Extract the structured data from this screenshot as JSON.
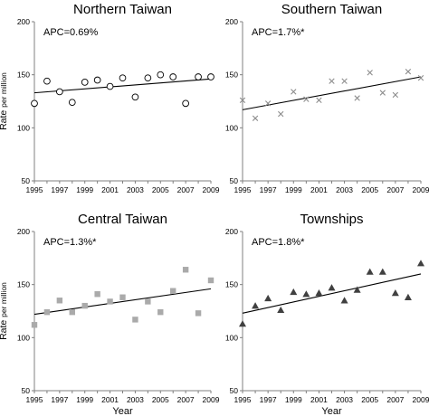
{
  "chart_data": [
    {
      "type": "scatter",
      "title": "Northern Taiwan",
      "annotation": "APC=0.69%",
      "marker": "circle",
      "ylabel_main": "Rate",
      "ylabel_sub": "per million",
      "xlabel": "",
      "xlim": [
        1995,
        2009
      ],
      "ylim": [
        50,
        200
      ],
      "xticks": [
        "1995",
        "1997",
        "1999",
        "2001",
        "2003",
        "2005",
        "2007",
        "2009"
      ],
      "yticks": [
        "50",
        "100",
        "150",
        "200"
      ],
      "x": [
        1995,
        1996,
        1997,
        1998,
        1999,
        2000,
        2001,
        2002,
        2003,
        2004,
        2005,
        2006,
        2007,
        2008,
        2009
      ],
      "y": [
        123,
        144,
        134,
        124,
        143,
        145,
        139,
        147,
        129,
        147,
        150,
        148,
        123,
        148,
        148
      ],
      "trend": [
        [
          1995,
          133
        ],
        [
          2009,
          146
        ]
      ]
    },
    {
      "type": "scatter",
      "title": "Southern Taiwan",
      "annotation": "APC=1.7%*",
      "marker": "x",
      "ylabel_main": "",
      "ylabel_sub": "",
      "xlabel": "",
      "xlim": [
        1995,
        2009
      ],
      "ylim": [
        50,
        200
      ],
      "xticks": [
        "1995",
        "1997",
        "1999",
        "2001",
        "2003",
        "2005",
        "2007",
        "2009"
      ],
      "yticks": [
        "50",
        "100",
        "150",
        "200"
      ],
      "x": [
        1995,
        1996,
        1997,
        1998,
        1999,
        2000,
        2001,
        2002,
        2003,
        2004,
        2005,
        2006,
        2007,
        2008,
        2009
      ],
      "y": [
        126,
        109,
        123,
        113,
        134,
        127,
        126,
        144,
        144,
        128,
        152,
        133,
        131,
        153,
        147
      ],
      "trend": [
        [
          1995,
          117
        ],
        [
          2009,
          148
        ]
      ]
    },
    {
      "type": "scatter",
      "title": "Central Taiwan",
      "annotation": "APC=1.3%*",
      "marker": "square",
      "ylabel_main": "Rate",
      "ylabel_sub": "per million",
      "xlabel": "Year",
      "xlim": [
        1995,
        2009
      ],
      "ylim": [
        50,
        200
      ],
      "xticks": [
        "1995",
        "1997",
        "1999",
        "2001",
        "2003",
        "2005",
        "2007",
        "2009"
      ],
      "yticks": [
        "50",
        "100",
        "150",
        "200"
      ],
      "x": [
        1995,
        1996,
        1997,
        1998,
        1999,
        2000,
        2001,
        2002,
        2003,
        2004,
        2005,
        2006,
        2007,
        2008,
        2009
      ],
      "y": [
        112,
        124,
        135,
        124,
        130,
        141,
        134,
        138,
        117,
        134,
        124,
        144,
        164,
        123,
        154
      ],
      "trend": [
        [
          1995,
          122
        ],
        [
          2009,
          146
        ]
      ]
    },
    {
      "type": "scatter",
      "title": "Townships",
      "annotation": "APC=1.8%*",
      "marker": "triangle",
      "ylabel_main": "",
      "ylabel_sub": "",
      "xlabel": "Year",
      "xlim": [
        1995,
        2009
      ],
      "ylim": [
        50,
        200
      ],
      "xticks": [
        "1995",
        "1997",
        "1999",
        "2001",
        "2003",
        "2005",
        "2007",
        "2009"
      ],
      "yticks": [
        "50",
        "100",
        "150",
        "200"
      ],
      "x": [
        1995,
        1996,
        1997,
        1998,
        1999,
        2000,
        2001,
        2002,
        2003,
        2004,
        2005,
        2006,
        2007,
        2008,
        2009
      ],
      "y": [
        113,
        130,
        137,
        126,
        143,
        141,
        142,
        147,
        135,
        145,
        162,
        162,
        142,
        138,
        170
      ],
      "trend": [
        [
          1995,
          123
        ],
        [
          2009,
          160
        ]
      ]
    }
  ],
  "style": {
    "axis_color": "#808080",
    "trend_color": "#000000",
    "circle_color": "#000000",
    "x_color": "#8c8c8c",
    "square_color": "#aaaaaa",
    "triangle_color": "#404040"
  }
}
